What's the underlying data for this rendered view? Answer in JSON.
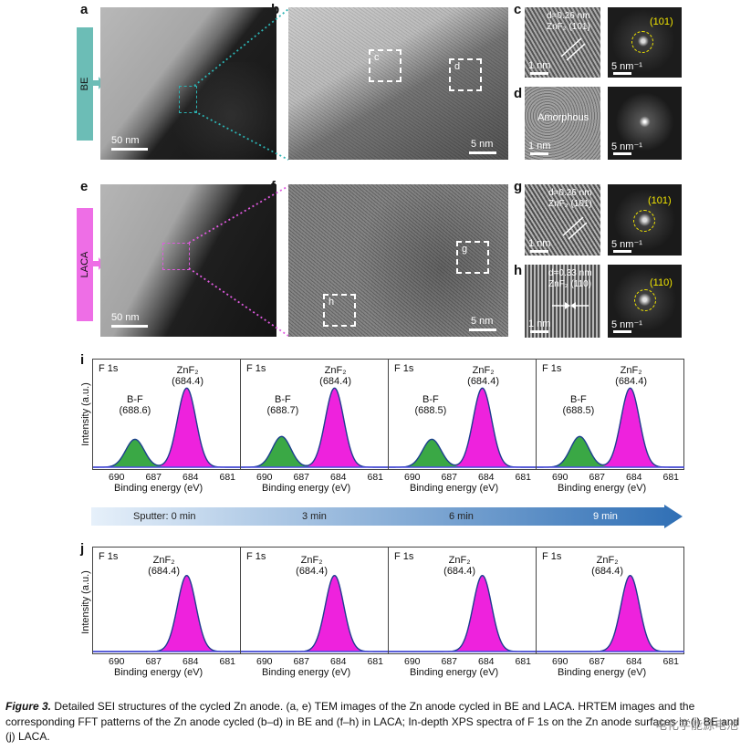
{
  "panels": {
    "a": "a",
    "b": "b",
    "c": "c",
    "d": "d",
    "e": "e",
    "f": "f",
    "g": "g",
    "h": "h",
    "i": "i",
    "j": "j"
  },
  "side_tabs": {
    "be": "BE",
    "laca": "LACA",
    "be_color": "#6cbdb6",
    "laca_color": "#ee6ee6"
  },
  "scalebars": {
    "a": "50 nm",
    "b": "5 nm",
    "c_hr": "1 nm",
    "c_fft": "5 nm⁻¹",
    "d_hr": "1 nm",
    "d_fft": "5 nm⁻¹",
    "e": "50 nm",
    "f": "5 nm",
    "g_hr": "1 nm",
    "g_fft": "5 nm⁻¹",
    "h_hr": "1 nm",
    "h_fft": "5 nm⁻¹"
  },
  "boxes": {
    "b_c": "c",
    "b_d": "d",
    "f_g": "g",
    "f_h": "h"
  },
  "overlays": {
    "c_d": "d=0.26 nm",
    "c_phase": "ZnF₂ (101)",
    "c_ring": "(101)",
    "d_text": "Amorphous",
    "g_d": "d=0.26 nm",
    "g_phase": "ZnF₂ (101)",
    "g_ring": "(101)",
    "h_d": "d=0.33 nm",
    "h_phase": "ZnF₂ (110)",
    "h_ring": "(110)"
  },
  "ring_color": "#f2e600",
  "xps": {
    "ylabel": "Intensity (a.u.)",
    "xlabel": "Binding energy (eV)",
    "ticks": [
      "690",
      "687",
      "684",
      "681"
    ],
    "colors": {
      "znf2": "#ee22dd",
      "bf": "#3aa845",
      "fit": "#1d3f8f"
    },
    "i_panels": [
      {
        "region": "F 1s",
        "znf2_label": "ZnF₂",
        "znf2_pos": "(684.4)",
        "bf_label": "B-F",
        "bf_pos": "(688.6)"
      },
      {
        "region": "F 1s",
        "znf2_label": "ZnF₂",
        "znf2_pos": "(684.4)",
        "bf_label": "B-F",
        "bf_pos": "(688.7)"
      },
      {
        "region": "F 1s",
        "znf2_label": "ZnF₂",
        "znf2_pos": "(684.4)",
        "bf_label": "B-F",
        "bf_pos": "(688.5)"
      },
      {
        "region": "F 1s",
        "znf2_label": "ZnF₂",
        "znf2_pos": "(684.4)",
        "bf_label": "B-F",
        "bf_pos": "(688.5)"
      }
    ],
    "j_panels": [
      {
        "region": "F 1s",
        "znf2_label": "ZnF₂",
        "znf2_pos": "(684.4)"
      },
      {
        "region": "F 1s",
        "znf2_label": "ZnF₂",
        "znf2_pos": "(684.4)"
      },
      {
        "region": "F 1s",
        "znf2_label": "ZnF₂",
        "znf2_pos": "(684.4)"
      },
      {
        "region": "F 1s",
        "znf2_label": "ZnF₂",
        "znf2_pos": "(684.4)"
      }
    ]
  },
  "sputter": {
    "label": "Sputter: 0 min",
    "steps": [
      "3 min",
      "6 min",
      "9 min"
    ],
    "color_start": "#e6f0fa",
    "color_end": "#2f6fb5"
  },
  "chart_data": [
    {
      "type": "area",
      "title": "F 1s",
      "xlabel": "Binding energy (eV)",
      "ylabel": "Intensity (a.u.)",
      "xlim": [
        692,
        680
      ],
      "xticks": [
        690,
        687,
        684,
        681
      ],
      "panels": [
        {
          "row": "i",
          "sputter": "0 min",
          "series": [
            {
              "name": "ZnF₂",
              "center": 684.4,
              "rel_height": 0.85
            },
            {
              "name": "B-F",
              "center": 688.6,
              "rel_height": 0.3
            }
          ]
        },
        {
          "row": "i",
          "sputter": "3 min",
          "series": [
            {
              "name": "ZnF₂",
              "center": 684.4,
              "rel_height": 0.85
            },
            {
              "name": "B-F",
              "center": 688.7,
              "rel_height": 0.33
            }
          ]
        },
        {
          "row": "i",
          "sputter": "6 min",
          "series": [
            {
              "name": "ZnF₂",
              "center": 684.4,
              "rel_height": 0.85
            },
            {
              "name": "B-F",
              "center": 688.5,
              "rel_height": 0.3
            }
          ]
        },
        {
          "row": "i",
          "sputter": "9 min",
          "series": [
            {
              "name": "ZnF₂",
              "center": 684.4,
              "rel_height": 0.85
            },
            {
              "name": "B-F",
              "center": 688.5,
              "rel_height": 0.33
            }
          ]
        }
      ]
    },
    {
      "type": "area",
      "title": "F 1s",
      "xlabel": "Binding energy (eV)",
      "ylabel": "Intensity (a.u.)",
      "xlim": [
        692,
        680
      ],
      "xticks": [
        690,
        687,
        684,
        681
      ],
      "panels": [
        {
          "row": "j",
          "sputter": "0 min",
          "series": [
            {
              "name": "ZnF₂",
              "center": 684.4,
              "rel_height": 0.85
            }
          ]
        },
        {
          "row": "j",
          "sputter": "3 min",
          "series": [
            {
              "name": "ZnF₂",
              "center": 684.4,
              "rel_height": 0.85
            }
          ]
        },
        {
          "row": "j",
          "sputter": "6 min",
          "series": [
            {
              "name": "ZnF₂",
              "center": 684.4,
              "rel_height": 0.85
            }
          ]
        },
        {
          "row": "j",
          "sputter": "9 min",
          "series": [
            {
              "name": "ZnF₂",
              "center": 684.4,
              "rel_height": 0.85
            }
          ]
        }
      ]
    }
  ],
  "caption": {
    "label": "Figure 3.",
    "text": " Detailed SEI structures of the cycled Zn anode. (a, e) TEM images of the Zn anode cycled in BE and LACA. HRTEM images and the corresponding FFT patterns of the Zn anode cycled (b–d) in BE and (f–h) in LACA; In-depth XPS spectra of F 1s on the Zn anode surfaces in (i) BE and (j) LACA."
  },
  "watermark": "电化学能源电池"
}
